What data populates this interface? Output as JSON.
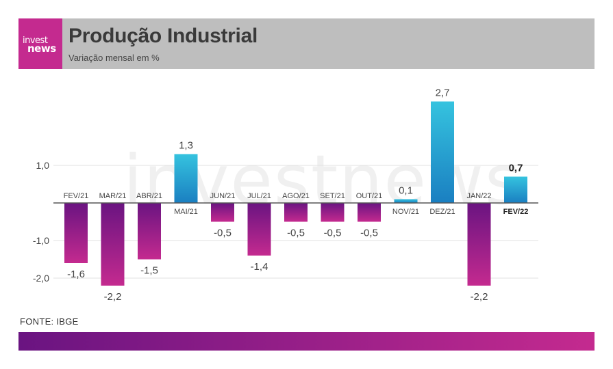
{
  "brand": {
    "logo_line1": "invest",
    "logo_line2": "news"
  },
  "header": {
    "title": "Produção Industrial",
    "subtitle": "Variação mensal em %"
  },
  "watermark": "investnews",
  "source": "FONTE: IBGE",
  "colors": {
    "negative_top": "#6a1481",
    "negative_bottom": "#c42a8f",
    "positive_top": "#35c3df",
    "positive_bottom": "#1a7fc1",
    "header_bg": "#bebebe",
    "brand": "#c42a8f"
  },
  "chart_data": {
    "type": "bar",
    "categories": [
      "FEV/21",
      "MAR/21",
      "ABR/21",
      "MAI/21",
      "JUN/21",
      "JUL/21",
      "AGO/21",
      "SET/21",
      "OUT/21",
      "NOV/21",
      "DEZ/21",
      "JAN/22",
      "FEV/22"
    ],
    "values": [
      -1.6,
      -2.2,
      -1.5,
      1.3,
      -0.5,
      -1.4,
      -0.5,
      -0.5,
      -0.5,
      0.1,
      2.7,
      -2.2,
      0.7
    ],
    "value_labels": [
      "-1,6",
      "-2,2",
      "-1,5",
      "1,3",
      "-0,5",
      "-1,4",
      "-0,5",
      "-0,5",
      "-0,5",
      "0,1",
      "2,7",
      "-2,2",
      "0,7"
    ],
    "y_ticks": [
      1.0,
      -1.0,
      -2.0
    ],
    "y_tick_labels": [
      "1,0",
      "-1,0",
      "-2,0"
    ],
    "highlight_index": 12,
    "grid": true
  }
}
